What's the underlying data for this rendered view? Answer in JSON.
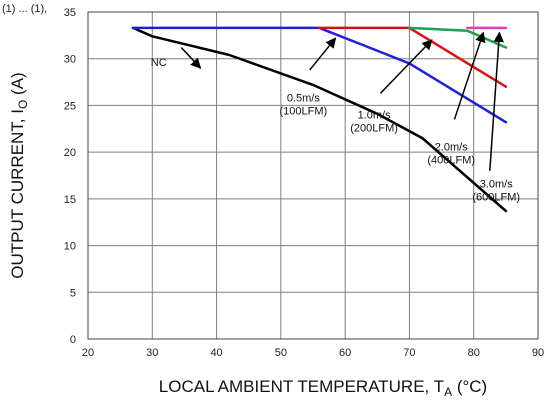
{
  "chart_data": {
    "type": "line",
    "title": "",
    "xlabel": "LOCAL AMBIENT TEMPERATURE, T",
    "xlabel_sub": "A",
    "xlabel_unit": " (°C)",
    "ylabel": "OUTPUT CURRENT, I",
    "ylabel_sub": "O",
    "ylabel_unit": " (A)",
    "xlim": [
      20,
      90
    ],
    "ylim": [
      0,
      35
    ],
    "xticks": [
      "20",
      "30",
      "40",
      "50",
      "60",
      "70",
      "80",
      "90"
    ],
    "yticks": [
      "0",
      "5",
      "10",
      "15",
      "20",
      "25",
      "30",
      "35"
    ],
    "grid": true,
    "top_fragment": "(1) ... (1),",
    "series": [
      {
        "color": "#000000",
        "x": [
          27,
          30,
          42,
          55,
          65,
          72,
          85
        ],
        "y": [
          33.3,
          32.4,
          30.4,
          27.2,
          24.1,
          21.5,
          13.7
        ]
      },
      {
        "color": "#1f1fe0",
        "x": [
          27,
          56,
          70,
          85
        ],
        "y": [
          33.3,
          33.3,
          29.5,
          23.2
        ]
      },
      {
        "color": "#e01010",
        "x": [
          56,
          70,
          85
        ],
        "y": [
          33.3,
          33.3,
          27.0
        ]
      },
      {
        "color": "#1fa050",
        "x": [
          70,
          79,
          85
        ],
        "y": [
          33.3,
          33.0,
          31.2
        ]
      },
      {
        "color": "#e040c0",
        "x": [
          79,
          85
        ],
        "y": [
          33.3,
          33.3
        ]
      }
    ],
    "annotations": [
      {
        "lines": [
          "NC"
        ],
        "x": 31,
        "y": 29.2,
        "tx": 34.5,
        "ty": 31.2,
        "hx": 37.5,
        "hy": 29.0
      },
      {
        "lines": [
          "0.5m/s",
          "(100LFM)"
        ],
        "x": 53.5,
        "y": 25.4,
        "tx": 54.5,
        "ty": 28.8,
        "hx": 58.5,
        "hy": 32.2
      },
      {
        "lines": [
          "1.0m/s",
          "(200LFM)"
        ],
        "x": 64.5,
        "y": 23.6,
        "tx": 65.5,
        "ty": 26.3,
        "hx": 73.5,
        "hy": 32.0
      },
      {
        "lines": [
          "2.0m/s",
          "(400LFM)"
        ],
        "x": 76.5,
        "y": 20.2,
        "tx": 77.0,
        "ty": 23.5,
        "hx": 81.5,
        "hy": 32.8
      },
      {
        "lines": [
          "3.0m/s",
          "(600LFM)"
        ],
        "x": 83.5,
        "y": 16.2,
        "tx": 82.5,
        "ty": 18.0,
        "hx": 84.0,
        "hy": 32.8
      }
    ]
  }
}
